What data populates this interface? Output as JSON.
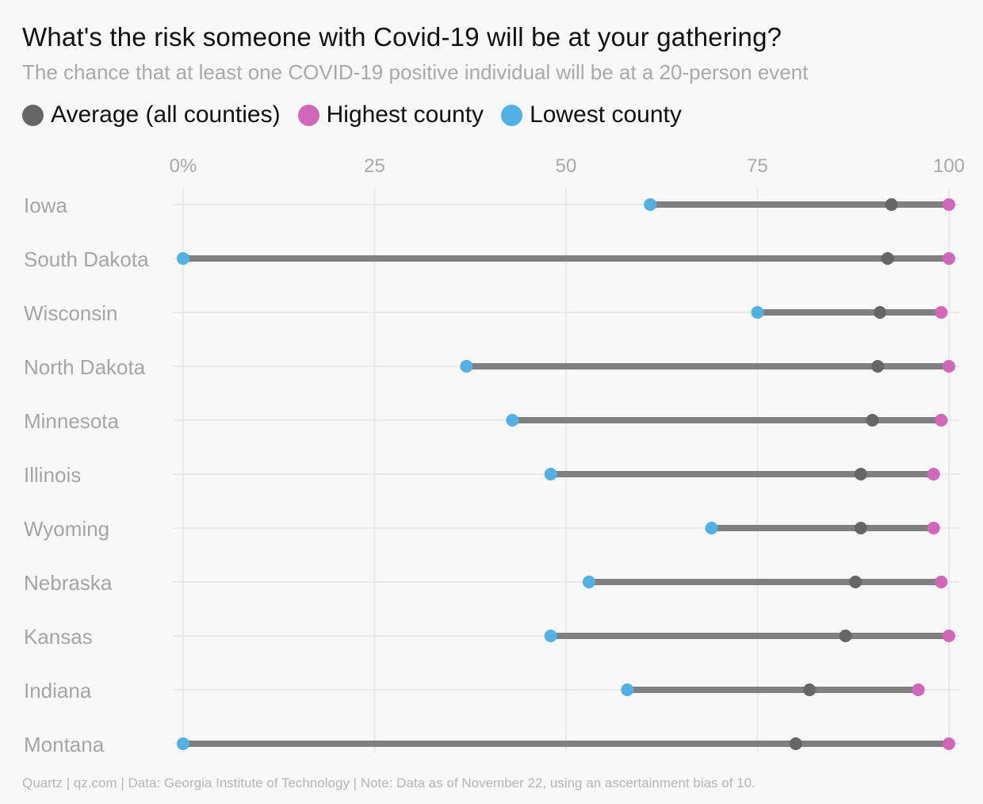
{
  "chart_data": {
    "type": "dumbbell",
    "title": "What's the risk someone with Covid-19 will be at your gathering?",
    "subtitle": "The chance that at least one COVID-19 positive individual will be at a 20-person event",
    "xlim": [
      0,
      100
    ],
    "x_ticks": [
      {
        "value": 0,
        "label": "0%"
      },
      {
        "value": 25,
        "label": "25"
      },
      {
        "value": 50,
        "label": "50"
      },
      {
        "value": 75,
        "label": "75"
      },
      {
        "value": 100,
        "label": "100"
      }
    ],
    "grid": true,
    "legend_position": "top-left",
    "series": [
      {
        "key": "average",
        "name": "Average (all counties)",
        "color": "#666666"
      },
      {
        "key": "highest",
        "name": "Highest county",
        "color": "#d266bb"
      },
      {
        "key": "lowest",
        "name": "Lowest county",
        "color": "#52b1e4"
      }
    ],
    "line_color": "#808080",
    "categories": [
      "Iowa",
      "South Dakota",
      "Wisconsin",
      "North Dakota",
      "Minnesota",
      "Illinois",
      "Wyoming",
      "Nebraska",
      "Kansas",
      "Indiana",
      "Montana"
    ],
    "rows": [
      {
        "state": "Iowa",
        "lowest": 61,
        "average": 92.5,
        "highest": 100
      },
      {
        "state": "South Dakota",
        "lowest": 0,
        "average": 92,
        "highest": 100
      },
      {
        "state": "Wisconsin",
        "lowest": 75,
        "average": 91,
        "highest": 99
      },
      {
        "state": "North Dakota",
        "lowest": 37,
        "average": 90.7,
        "highest": 100
      },
      {
        "state": "Minnesota",
        "lowest": 43,
        "average": 90,
        "highest": 99
      },
      {
        "state": "Illinois",
        "lowest": 48,
        "average": 88.5,
        "highest": 98
      },
      {
        "state": "Wyoming",
        "lowest": 69,
        "average": 88.5,
        "highest": 98
      },
      {
        "state": "Nebraska",
        "lowest": 53,
        "average": 87.8,
        "highest": 99
      },
      {
        "state": "Kansas",
        "lowest": 48,
        "average": 86.5,
        "highest": 100
      },
      {
        "state": "Indiana",
        "lowest": 58,
        "average": 81.8,
        "highest": 96
      },
      {
        "state": "Montana",
        "lowest": 0,
        "average": 80,
        "highest": 100
      }
    ]
  },
  "footer": "Quartz | qz.com | Data: Georgia Institute of Technology | Note: Data as of November 22, using an ascertainment bias of 10."
}
